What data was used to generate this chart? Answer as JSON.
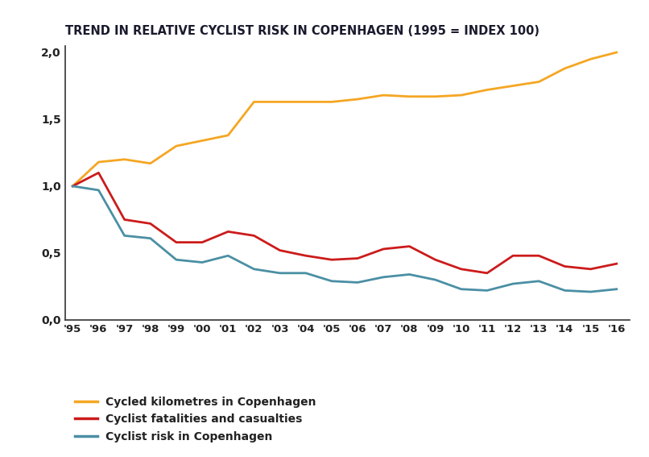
{
  "title": "TREND IN RELATIVE CYCLIST RISK IN COPENHAGEN (1995 = INDEX 100)",
  "years": [
    1995,
    1996,
    1997,
    1998,
    1999,
    2000,
    2001,
    2002,
    2003,
    2004,
    2005,
    2006,
    2007,
    2008,
    2009,
    2010,
    2011,
    2012,
    2013,
    2014,
    2015,
    2016
  ],
  "cycled_km": [
    1.0,
    1.18,
    1.2,
    1.17,
    1.3,
    1.34,
    1.38,
    1.63,
    1.63,
    1.63,
    1.63,
    1.65,
    1.68,
    1.67,
    1.67,
    1.68,
    1.72,
    1.75,
    1.78,
    1.88,
    1.95,
    2.0
  ],
  "fatalities": [
    1.0,
    1.1,
    0.75,
    0.72,
    0.58,
    0.58,
    0.66,
    0.63,
    0.52,
    0.48,
    0.45,
    0.46,
    0.53,
    0.55,
    0.45,
    0.38,
    0.35,
    0.48,
    0.48,
    0.4,
    0.38,
    0.42
  ],
  "risk": [
    1.0,
    0.97,
    0.63,
    0.61,
    0.45,
    0.43,
    0.48,
    0.38,
    0.35,
    0.35,
    0.29,
    0.28,
    0.32,
    0.34,
    0.3,
    0.23,
    0.22,
    0.27,
    0.29,
    0.22,
    0.21,
    0.23
  ],
  "color_orange": "#F5A623",
  "color_red": "#CC1B1B",
  "color_teal": "#4A8FA4",
  "ylim": [
    0.0,
    2.05
  ],
  "yticks": [
    0.0,
    0.5,
    1.0,
    1.5,
    2.0
  ],
  "ytick_labels": [
    "0,0",
    "0,5",
    "1,0",
    "1,5",
    "2,0"
  ],
  "xtick_labels": [
    "'95",
    "'96",
    "'97",
    "'98",
    "'99",
    "'00",
    "'01",
    "'02",
    "'03",
    "'04",
    "'05",
    "'06",
    "'07",
    "'08",
    "'09",
    "'10",
    "'11",
    "'12",
    "'13",
    "'14",
    "'15",
    "'16"
  ],
  "legend_cycled": "Cycled kilometres in Copenhagen",
  "legend_fatalities": "Cyclist fatalities and casualties",
  "legend_risk": "Cyclist risk in Copenhagen",
  "background_color": "#FFFFFF",
  "line_width": 2.0,
  "spine_color": "#333333",
  "tick_color": "#222222",
  "title_color": "#1a1a2e"
}
